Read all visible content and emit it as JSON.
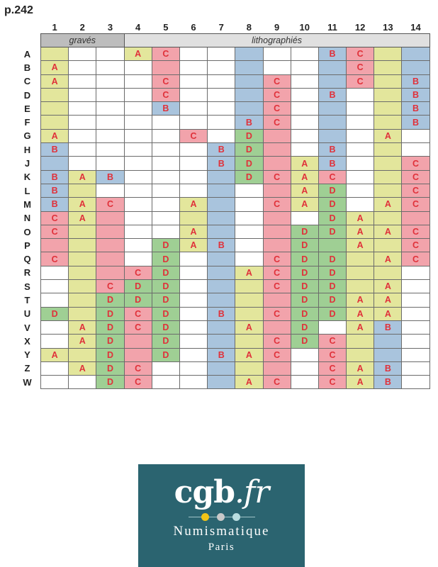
{
  "page_label": "p.242",
  "groups": [
    {
      "label": "gravés",
      "span": 3,
      "color": "#bdbdbd"
    },
    {
      "label": "lithographiés",
      "span": 11,
      "color": "#e0e0e0"
    }
  ],
  "columns": [
    "1",
    "2",
    "3",
    "4",
    "5",
    "6",
    "7",
    "8",
    "9",
    "10",
    "11",
    "12",
    "13",
    "14"
  ],
  "colors": {
    "y": "#e3e69c",
    "b": "#a9c4dd",
    "p": "#f2a3ab",
    "g": "#9fcf94",
    "w": "#ffffff"
  },
  "rows": [
    {
      "label": "A",
      "cells": [
        "y",
        "w",
        "w",
        "y:A",
        "p:C",
        "w",
        "w",
        "b",
        "w",
        "w",
        "b:B",
        "p:C",
        "y",
        "b"
      ]
    },
    {
      "label": "B",
      "cells": [
        "y:A",
        "w",
        "w",
        "w",
        "p",
        "w",
        "w",
        "b",
        "w",
        "w",
        "b",
        "p:C",
        "y",
        "b"
      ]
    },
    {
      "label": "C",
      "cells": [
        "y:A",
        "w",
        "w",
        "w",
        "p:C",
        "w",
        "w",
        "b",
        "p:C",
        "w",
        "b",
        "p:C",
        "y",
        "b:B"
      ]
    },
    {
      "label": "D",
      "cells": [
        "y",
        "w",
        "w",
        "w",
        "p:C",
        "w",
        "w",
        "b",
        "p:C",
        "w",
        "b:B",
        "w",
        "y",
        "b:B"
      ]
    },
    {
      "label": "E",
      "cells": [
        "y",
        "w",
        "w",
        "w",
        "b:B",
        "w",
        "w",
        "b",
        "p:C",
        "w",
        "b",
        "w",
        "y",
        "b:B"
      ]
    },
    {
      "label": "F",
      "cells": [
        "y",
        "w",
        "w",
        "w",
        "w",
        "w",
        "w",
        "b:B",
        "p:C",
        "w",
        "b",
        "w",
        "y",
        "b:B"
      ]
    },
    {
      "label": "G",
      "cells": [
        "y:A",
        "w",
        "w",
        "w",
        "w",
        "p:C",
        "w",
        "g:D",
        "p",
        "w",
        "b",
        "w",
        "y:A",
        "w"
      ]
    },
    {
      "label": "H",
      "cells": [
        "b:B",
        "w",
        "w",
        "w",
        "w",
        "w",
        "b:B",
        "g:D",
        "p",
        "w",
        "b:B",
        "w",
        "y",
        "w"
      ]
    },
    {
      "label": "J",
      "cells": [
        "b",
        "w",
        "w",
        "w",
        "w",
        "w",
        "b:B",
        "g:D",
        "p",
        "y:A",
        "b:B",
        "w",
        "y",
        "p:C"
      ]
    },
    {
      "label": "K",
      "cells": [
        "b:B",
        "y:A",
        "b:B",
        "w",
        "w",
        "w",
        "b",
        "g:D",
        "p:C",
        "y:A",
        "p:C",
        "w",
        "y",
        "p:C"
      ]
    },
    {
      "label": "L",
      "cells": [
        "b:B",
        "y",
        "w",
        "w",
        "w",
        "w",
        "b",
        "w",
        "p",
        "y:A",
        "g:D",
        "w",
        "y",
        "p:C"
      ]
    },
    {
      "label": "M",
      "cells": [
        "b:B",
        "y:A",
        "p:C",
        "w",
        "w",
        "y:A",
        "b",
        "w",
        "p:C",
        "y:A",
        "g:D",
        "w",
        "y:A",
        "p:C"
      ]
    },
    {
      "label": "N",
      "cells": [
        "p:C",
        "y:A",
        "p",
        "w",
        "w",
        "y",
        "b",
        "w",
        "p",
        "w",
        "g:D",
        "y:A",
        "y",
        "p"
      ]
    },
    {
      "label": "O",
      "cells": [
        "p:C",
        "y",
        "p",
        "w",
        "w",
        "y:A",
        "b",
        "w",
        "p",
        "g:D",
        "g:D",
        "y:A",
        "y:A",
        "p:C"
      ]
    },
    {
      "label": "P",
      "cells": [
        "p",
        "y",
        "p",
        "w",
        "g:D",
        "y:A",
        "b:B",
        "w",
        "p",
        "g:D",
        "g",
        "y:A",
        "y",
        "p:C"
      ]
    },
    {
      "label": "Q",
      "cells": [
        "p:C",
        "y",
        "p",
        "w",
        "g:D",
        "w",
        "b",
        "w",
        "p:C",
        "g:D",
        "g:D",
        "y",
        "y:A",
        "p:C"
      ]
    },
    {
      "label": "R",
      "cells": [
        "w",
        "y",
        "p",
        "p:C",
        "g:D",
        "w",
        "b",
        "y:A",
        "p:C",
        "g:D",
        "g:D",
        "y",
        "y",
        "w"
      ]
    },
    {
      "label": "S",
      "cells": [
        "w",
        "y",
        "p:C",
        "g:D",
        "g:D",
        "w",
        "b",
        "y",
        "p:C",
        "g:D",
        "g:D",
        "y",
        "y:A",
        "w"
      ]
    },
    {
      "label": "T",
      "cells": [
        "w",
        "y",
        "g:D",
        "g:D",
        "g:D",
        "w",
        "b",
        "y",
        "p",
        "g:D",
        "g:D",
        "y:A",
        "y:A",
        "w"
      ]
    },
    {
      "label": "U",
      "cells": [
        "g:D",
        "y",
        "g:D",
        "p:C",
        "g:D",
        "w",
        "b:B",
        "y",
        "p:C",
        "g:D",
        "g:D",
        "y:A",
        "y:A",
        "w"
      ]
    },
    {
      "label": "V",
      "cells": [
        "w",
        "y:A",
        "g:D",
        "p:C",
        "g:D",
        "w",
        "b",
        "y:A",
        "p",
        "g:D",
        "w",
        "y:A",
        "b:B",
        "w"
      ]
    },
    {
      "label": "X",
      "cells": [
        "w",
        "y:A",
        "g:D",
        "p",
        "g:D",
        "w",
        "b",
        "y",
        "p:C",
        "g:D",
        "p:C",
        "y",
        "b",
        "w"
      ]
    },
    {
      "label": "Y",
      "cells": [
        "y:A",
        "y",
        "g:D",
        "p",
        "g:D",
        "w",
        "b:B",
        "y:A",
        "p:C",
        "w",
        "p:C",
        "y",
        "b",
        "w"
      ]
    },
    {
      "label": "Z",
      "cells": [
        "w",
        "y:A",
        "g:D",
        "p:C",
        "w",
        "w",
        "b",
        "y",
        "p",
        "w",
        "p:C",
        "y:A",
        "b:B",
        "w"
      ]
    },
    {
      "label": "W",
      "cells": [
        "w",
        "w",
        "g:D",
        "p:C",
        "w",
        "w",
        "b",
        "y:A",
        "p:C",
        "w",
        "p:C",
        "y:A",
        "b:B",
        "w"
      ]
    }
  ],
  "logo": {
    "brand_main": "cgb",
    "brand_ext": ".fr",
    "line1": "Numismatique",
    "line2": "Paris",
    "dot_colors": [
      "#f2c417",
      "#c9c9c9",
      "#b9dde0"
    ]
  }
}
